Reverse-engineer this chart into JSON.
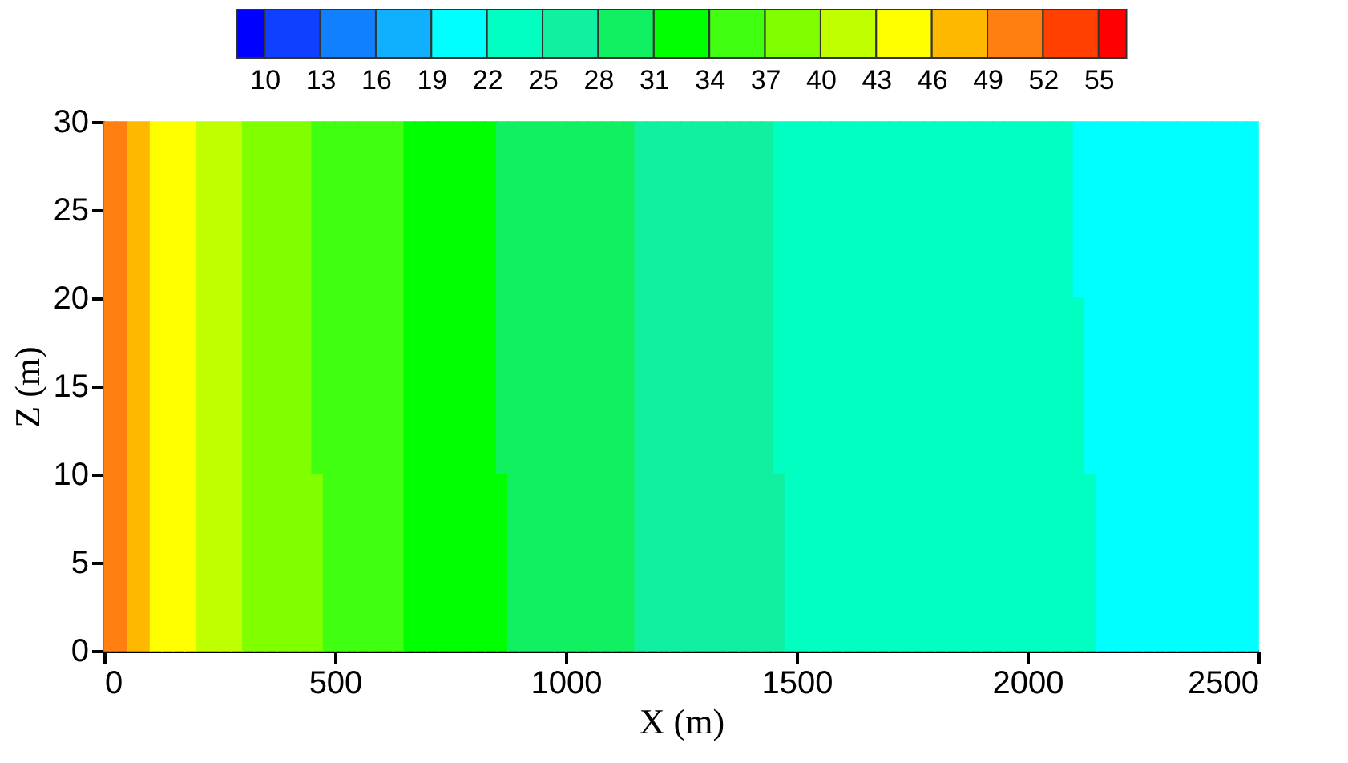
{
  "chart_data": {
    "type": "heatmap",
    "xlabel": "X (m)",
    "ylabel": "Z (m)",
    "x": [
      12.5,
      37.5,
      62.5,
      87.5,
      112.5,
      137.5,
      162.5,
      187.5,
      212.5,
      237.5,
      262.5,
      287.5,
      312.5,
      337.5,
      362.5,
      387.5,
      412.5,
      437.5,
      462.5,
      487.5,
      512.5,
      537.5,
      562.5,
      587.5,
      612.5,
      637.5,
      662.5,
      687.5,
      712.5,
      737.5,
      762.5,
      787.5,
      812.5,
      837.5,
      862.5,
      887.5,
      912.5,
      937.5,
      962.5,
      987.5,
      1012.5,
      1037.5,
      1062.5,
      1087.5,
      1112.5,
      1137.5,
      1162.5,
      1187.5,
      1212.5,
      1237.5,
      1262.5,
      1287.5,
      1312.5,
      1337.5,
      1362.5,
      1387.5,
      1412.5,
      1437.5,
      1462.5,
      1487.5,
      1512.5,
      1537.5,
      1562.5,
      1587.5,
      1612.5,
      1637.5,
      1662.5,
      1687.5,
      1712.5,
      1737.5,
      1762.5,
      1787.5,
      1812.5,
      1837.5,
      1862.5,
      1887.5,
      1912.5,
      1937.5,
      1962.5,
      1987.5,
      2012.5,
      2037.5,
      2062.5,
      2087.5,
      2112.5,
      2137.5,
      2162.5,
      2187.5,
      2212.5,
      2237.5,
      2262.5,
      2287.5,
      2312.5,
      2337.5,
      2362.5,
      2387.5,
      2412.5,
      2437.5,
      2462.5,
      2487.5
    ],
    "y": [
      25,
      15,
      5
    ],
    "cells": [
      [
        50.5,
        50.5,
        47.5,
        47.5,
        44.5,
        44.5,
        44.5,
        44.5,
        41.5,
        41.5,
        41.5,
        41.5,
        38.5,
        38.5,
        38.5,
        38.5,
        38.5,
        38.5,
        35.5,
        35.5,
        35.5,
        35.5,
        35.5,
        35.5,
        35.5,
        35.5,
        32.5,
        32.5,
        32.5,
        32.5,
        32.5,
        32.5,
        32.5,
        32.5,
        29.5,
        29.5,
        29.5,
        29.5,
        29.5,
        29.5,
        29.5,
        29.5,
        29.5,
        29.5,
        29.5,
        29.5,
        26.5,
        26.5,
        26.5,
        26.5,
        26.5,
        26.5,
        26.5,
        26.5,
        26.5,
        26.5,
        26.5,
        26.5,
        23.5,
        23.5,
        23.5,
        23.5,
        23.5,
        23.5,
        23.5,
        23.5,
        23.5,
        23.5,
        23.5,
        23.5,
        23.5,
        23.5,
        23.5,
        23.5,
        23.5,
        23.5,
        23.5,
        23.5,
        23.5,
        23.5,
        23.5,
        23.5,
        23.5,
        23.5,
        20.5,
        20.5,
        20.5,
        20.5,
        20.5,
        20.5,
        20.5,
        20.5,
        20.5,
        20.5,
        20.5,
        20.5,
        20.5,
        20.5,
        20.5,
        20.5
      ],
      [
        50.5,
        50.5,
        47.5,
        47.5,
        44.5,
        44.5,
        44.5,
        44.5,
        41.5,
        41.5,
        41.5,
        41.5,
        38.5,
        38.5,
        38.5,
        38.5,
        38.5,
        38.5,
        35.5,
        35.5,
        35.5,
        35.5,
        35.5,
        35.5,
        35.5,
        35.5,
        32.5,
        32.5,
        32.5,
        32.5,
        32.5,
        32.5,
        32.5,
        32.5,
        29.5,
        29.5,
        29.5,
        29.5,
        29.5,
        29.5,
        29.5,
        29.5,
        29.5,
        29.5,
        29.5,
        29.5,
        26.5,
        26.5,
        26.5,
        26.5,
        26.5,
        26.5,
        26.5,
        26.5,
        26.5,
        26.5,
        26.5,
        26.5,
        23.5,
        23.5,
        23.5,
        23.5,
        23.5,
        23.5,
        23.5,
        23.5,
        23.5,
        23.5,
        23.5,
        23.5,
        23.5,
        23.5,
        23.5,
        23.5,
        23.5,
        23.5,
        23.5,
        23.5,
        23.5,
        23.5,
        23.5,
        23.5,
        23.5,
        23.5,
        23.5,
        20.5,
        20.5,
        20.5,
        20.5,
        20.5,
        20.5,
        20.5,
        20.5,
        20.5,
        20.5,
        20.5,
        20.5,
        20.5,
        20.5,
        20.5
      ],
      [
        50.5,
        50.5,
        47.5,
        47.5,
        44.5,
        44.5,
        44.5,
        44.5,
        41.5,
        41.5,
        41.5,
        41.5,
        38.5,
        38.5,
        38.5,
        38.5,
        38.5,
        38.5,
        38.5,
        35.5,
        35.5,
        35.5,
        35.5,
        35.5,
        35.5,
        35.5,
        32.5,
        32.5,
        32.5,
        32.5,
        32.5,
        32.5,
        32.5,
        32.5,
        32.5,
        29.5,
        29.5,
        29.5,
        29.5,
        29.5,
        29.5,
        29.5,
        29.5,
        29.5,
        29.5,
        29.5,
        26.5,
        26.5,
        26.5,
        26.5,
        26.5,
        26.5,
        26.5,
        26.5,
        26.5,
        26.5,
        26.5,
        26.5,
        26.5,
        23.5,
        23.5,
        23.5,
        23.5,
        23.5,
        23.5,
        23.5,
        23.5,
        23.5,
        23.5,
        23.5,
        23.5,
        23.5,
        23.5,
        23.5,
        23.5,
        23.5,
        23.5,
        23.5,
        23.5,
        23.5,
        23.5,
        23.5,
        23.5,
        23.5,
        23.5,
        23.5,
        20.5,
        20.5,
        20.5,
        20.5,
        20.5,
        20.5,
        20.5,
        20.5,
        20.5,
        20.5,
        20.5,
        20.5,
        20.5,
        20.5
      ]
    ],
    "colors": [
      "#0000ff",
      "#1040ff",
      "#1080ff",
      "#10b0ff",
      "#00ffff",
      "#00ffc0",
      "#10f0a0",
      "#10f060",
      "#00ff00",
      "#40ff10",
      "#80ff00",
      "#c0ff00",
      "#ffff00",
      "#ffb800",
      "#ff8010",
      "#ff4000",
      "#ff0000"
    ],
    "clim": [
      8.5,
      56.5
    ],
    "cticks": [
      10,
      13,
      16,
      19,
      22,
      25,
      28,
      31,
      34,
      37,
      40,
      43,
      46,
      49,
      52,
      55
    ],
    "xlim": [
      0,
      2500
    ],
    "ylim": [
      0,
      30
    ],
    "xticks": [
      0,
      500,
      1000,
      1500,
      2000,
      2500
    ],
    "yticks": [
      0,
      5,
      10,
      15,
      20,
      25,
      30
    ],
    "grid": false
  }
}
